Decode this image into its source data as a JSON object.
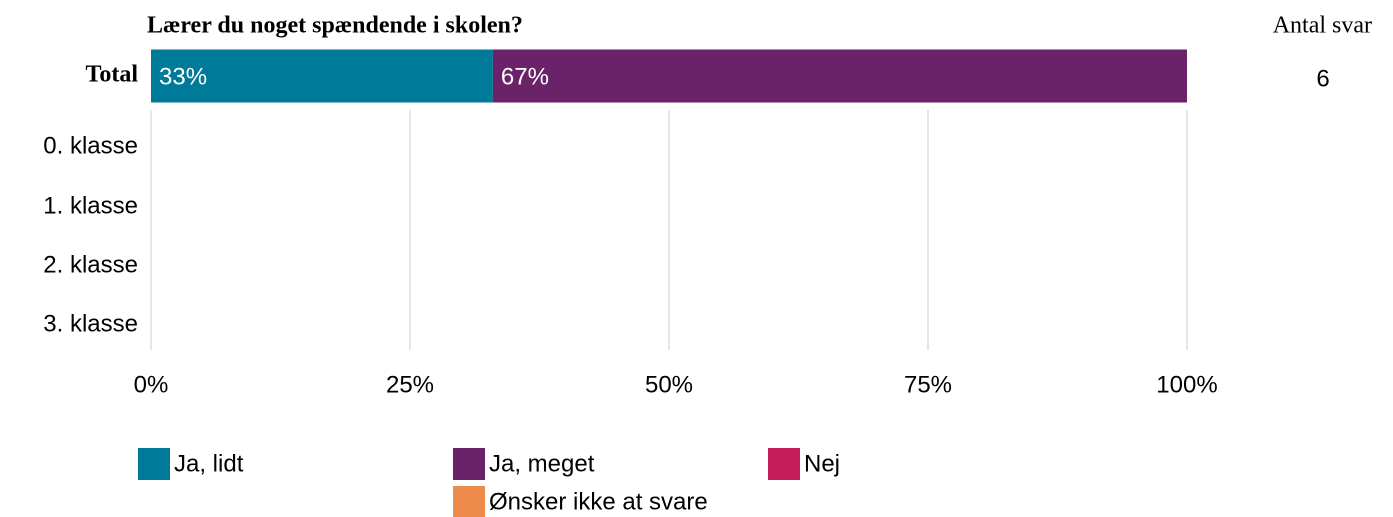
{
  "chart_data": {
    "type": "bar",
    "orientation": "horizontal",
    "stacked": true,
    "title": "Lærer du noget spændende i skolen?",
    "categories": [
      "Total",
      "0. klasse",
      "1. klasse",
      "2. klasse",
      "3. klasse"
    ],
    "series": [
      {
        "name": "Ja, lidt",
        "color": "#007a99",
        "values": [
          33,
          null,
          null,
          null,
          null
        ],
        "value_labels": [
          "33%",
          null,
          null,
          null,
          null
        ]
      },
      {
        "name": "Ja, meget",
        "color": "#6a2368",
        "values": [
          67,
          null,
          null,
          null,
          null
        ],
        "value_labels": [
          "67%",
          null,
          null,
          null,
          null
        ]
      },
      {
        "name": "Nej",
        "color": "#c41e5a",
        "values": [
          null,
          null,
          null,
          null,
          null
        ]
      },
      {
        "name": "Ønsker ikke at svare",
        "color": "#ee8a4a",
        "values": [
          null,
          null,
          null,
          null,
          null
        ]
      }
    ],
    "count_label": "Antal svar",
    "counts": [
      6,
      null,
      null,
      null,
      null
    ],
    "xlim": [
      0,
      100
    ],
    "xticks": [
      {
        "value": 0,
        "label": "0%"
      },
      {
        "value": 25,
        "label": "25%"
      },
      {
        "value": 50,
        "label": "50%"
      },
      {
        "value": 75,
        "label": "75%"
      },
      {
        "value": 100,
        "label": "100%"
      }
    ],
    "grid": true
  }
}
